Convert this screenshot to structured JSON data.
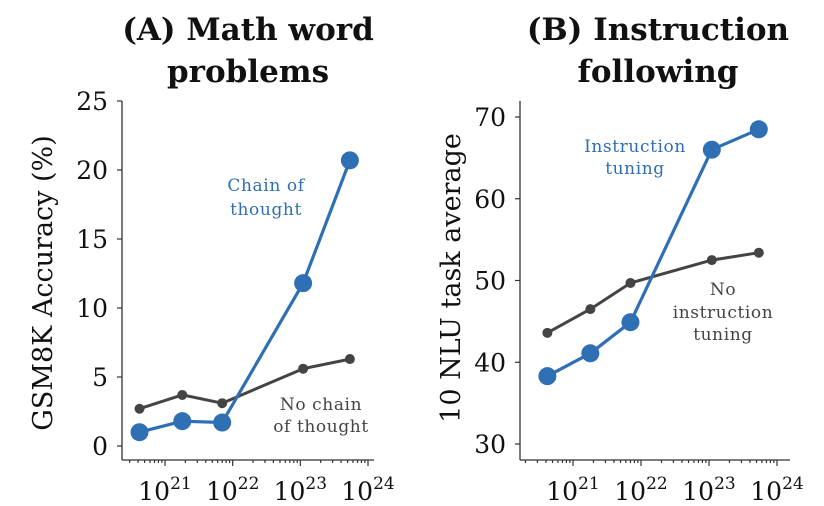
{
  "chart_data": [
    {
      "type": "line",
      "title_lines": [
        "(A) Math word",
        "problems"
      ],
      "xlabel": "",
      "ylabel": "GSM8K Accuracy (%)",
      "x_scale": "log",
      "x_ticks": [
        1e+21,
        1e+22,
        1e+23,
        1e+24
      ],
      "x_tick_labels": [
        {
          "base": "10",
          "exp": "21"
        },
        {
          "base": "10",
          "exp": "22"
        },
        {
          "base": "10",
          "exp": "23"
        },
        {
          "base": "10",
          "exp": "24"
        }
      ],
      "ylim": [
        0,
        25
      ],
      "y_ticks": [
        0,
        5,
        10,
        15,
        20,
        25
      ],
      "grid": false,
      "series": [
        {
          "name_lines": [
            "Chain of",
            "thought"
          ],
          "color": "#2f6fb3",
          "marker": "large-circle",
          "x": [
            4.2e+20,
            1.8e+21,
            7e+21,
            1.1e+23,
            5.4e+23
          ],
          "y": [
            1.0,
            1.8,
            1.7,
            11.8,
            20.7
          ]
        },
        {
          "name_lines": [
            "No chain",
            "of thought"
          ],
          "color": "#444444",
          "marker": "small-circle",
          "x": [
            4.2e+20,
            1.8e+21,
            7e+21,
            1.1e+23,
            5.4e+23
          ],
          "y": [
            2.7,
            3.7,
            3.1,
            5.6,
            6.3
          ]
        }
      ]
    },
    {
      "type": "line",
      "title_lines": [
        "(B) Instruction",
        "following"
      ],
      "xlabel": "",
      "ylabel": "10 NLU task average",
      "x_scale": "log",
      "x_ticks": [
        1e+21,
        1e+22,
        1e+23,
        1e+24
      ],
      "x_tick_labels": [
        {
          "base": "10",
          "exp": "21"
        },
        {
          "base": "10",
          "exp": "22"
        },
        {
          "base": "10",
          "exp": "23"
        },
        {
          "base": "10",
          "exp": "24"
        }
      ],
      "ylim": [
        30,
        70
      ],
      "y_ticks": [
        30,
        40,
        50,
        60,
        70
      ],
      "grid": false,
      "series": [
        {
          "name_lines": [
            "Instruction",
            "tuning"
          ],
          "color": "#2f6fb3",
          "marker": "large-circle",
          "x": [
            4.2e+20,
            1.8e+21,
            7e+21,
            1.1e+23,
            5.4e+23
          ],
          "y": [
            38.3,
            41.1,
            44.9,
            66.0,
            68.5
          ]
        },
        {
          "name_lines": [
            "No",
            "instruction",
            "tuning"
          ],
          "color": "#444444",
          "marker": "small-circle",
          "x": [
            4.2e+20,
            1.8e+21,
            7e+21,
            1.1e+23,
            5.4e+23
          ],
          "y": [
            43.6,
            46.5,
            49.7,
            52.5,
            53.4
          ]
        }
      ]
    }
  ]
}
